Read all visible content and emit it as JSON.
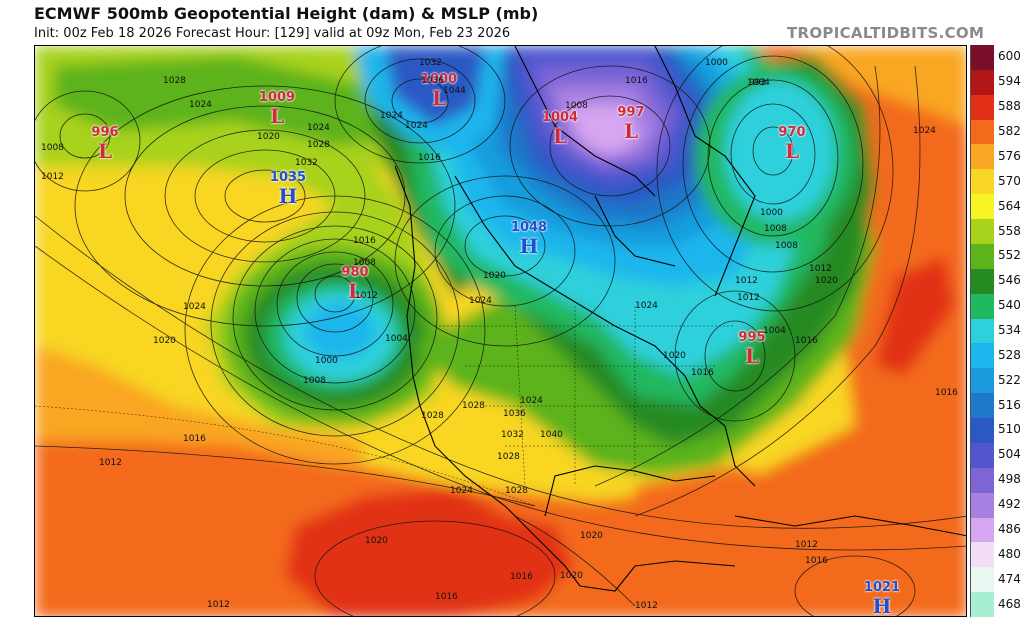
{
  "header": {
    "title": "ECMWF 500mb Geopotential Height (dam) & MSLP (mb)",
    "subtitle": "Init: 00z Feb 18 2026   Forecast Hour: [129]   valid at 09z Mon, Feb 23 2026",
    "watermark": "TROPICALTIDBITS.COM"
  },
  "colorbar": {
    "labels": [
      "600",
      "594",
      "588",
      "582",
      "576",
      "570",
      "564",
      "558",
      "552",
      "546",
      "540",
      "534",
      "528",
      "522",
      "516",
      "510",
      "504",
      "498",
      "492",
      "486",
      "480",
      "474",
      "468"
    ],
    "colors": [
      "#7a0f2a",
      "#b01616",
      "#e23016",
      "#f36a1c",
      "#f9a624",
      "#f8d624",
      "#f6f425",
      "#a8d21c",
      "#5cb31c",
      "#258a22",
      "#20b860",
      "#2ed0dc",
      "#1cb6ec",
      "#199bdd",
      "#1f78c9",
      "#2a58c4",
      "#5156cf",
      "#7d65d6",
      "#a880e2",
      "#d7a6f0",
      "#f2dff6",
      "#e8f8f0",
      "#a8eed3"
    ]
  },
  "map": {
    "pressure_centers": [
      {
        "type": "L",
        "value": "996",
        "color": "#d02a3a"
      },
      {
        "type": "L",
        "value": "1009",
        "color": "#d02a3a"
      },
      {
        "type": "L",
        "value": "1000",
        "color": "#d02a3a"
      },
      {
        "type": "H",
        "value": "1035",
        "color": "#1f4fd0"
      },
      {
        "type": "L",
        "value": "980",
        "color": "#d02a3a"
      },
      {
        "type": "L",
        "value": "1004",
        "color": "#d02a3a"
      },
      {
        "type": "L",
        "value": "997",
        "color": "#d02a3a"
      },
      {
        "type": "L",
        "value": "970",
        "color": "#d02a3a"
      },
      {
        "type": "H",
        "value": "1048",
        "color": "#1f4fd0"
      },
      {
        "type": "L",
        "value": "995",
        "color": "#d02a3a"
      },
      {
        "type": "H",
        "value": "1021",
        "color": "#1f4fd0"
      }
    ],
    "isobar_labels": [
      "1008",
      "1012",
      "1024",
      "1028",
      "1020",
      "1024",
      "1028",
      "1032",
      "1016",
      "1012",
      "1008",
      "1004",
      "1024",
      "1020",
      "1024",
      "1016",
      "1012",
      "1008",
      "1000",
      "1028",
      "1032",
      "1036",
      "1044",
      "1024",
      "1016",
      "1020",
      "1024",
      "1040",
      "1028",
      "1008",
      "1016",
      "1000",
      "1004",
      "1008",
      "1012",
      "1020",
      "1024",
      "1000",
      "992",
      "1008",
      "1024",
      "1012",
      "1020",
      "1016",
      "1012",
      "1016",
      "1024",
      "1028",
      "1020",
      "1016",
      "1020",
      "1016",
      "1012",
      "1012",
      "1004",
      "1016",
      "1028",
      "1032",
      "1036",
      "1012",
      "1020",
      "1024",
      "1012",
      "1016"
    ]
  }
}
